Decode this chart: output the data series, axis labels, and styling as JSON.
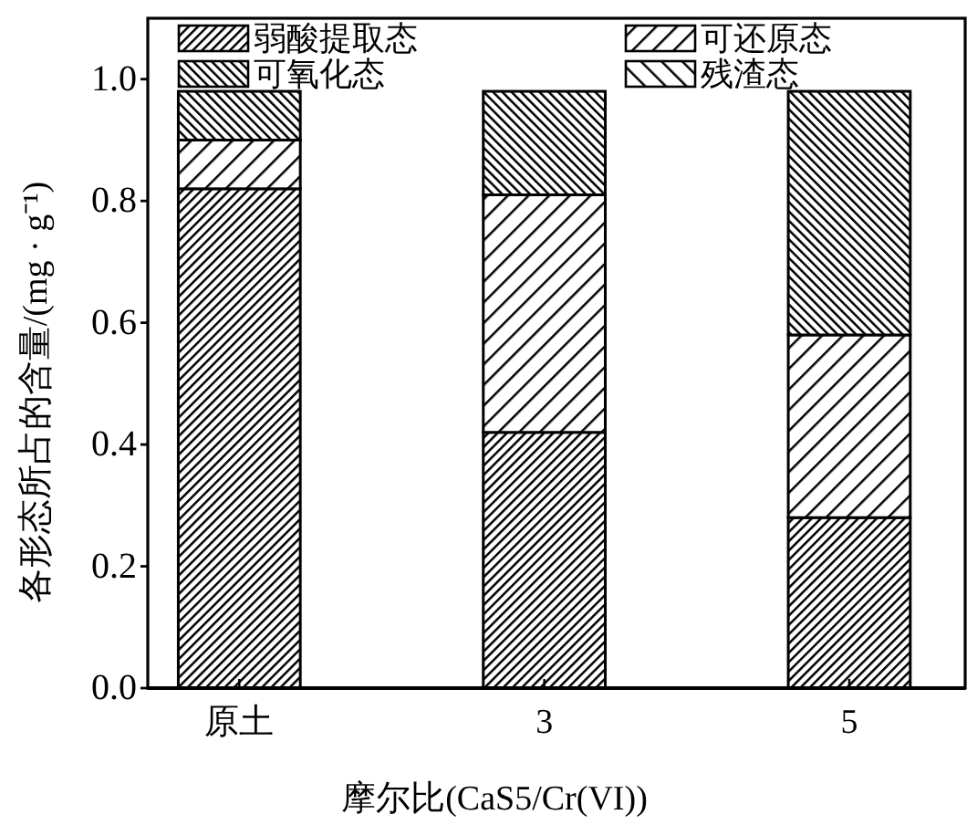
{
  "chart_data": {
    "type": "bar",
    "stacked": true,
    "xlabel": "摩尔比(CaS5/Cr(VI))",
    "ylabel": "各形态所占的含量/(mg · g⁻¹)",
    "categories": [
      "原土",
      "3",
      "5"
    ],
    "series": [
      {
        "name": "弱酸提取态",
        "color": "#000000",
        "values": [
          0.82,
          0.42,
          0.28
        ]
      },
      {
        "name": "可还原态",
        "color": "#000000",
        "values": [
          0.08,
          0.39,
          0.3
        ]
      },
      {
        "name": "可氧化态",
        "color": "#000000",
        "values": [
          0.08,
          0.17,
          0.4
        ]
      },
      {
        "name": "残渣态",
        "color": "#000000",
        "values": [
          null,
          null,
          null
        ]
      }
    ],
    "ylim": [
      0,
      1.1
    ],
    "yticks": [
      {
        "value": 0,
        "label": "0.0"
      },
      0.2,
      0.4,
      0.6,
      0.8,
      {
        "value": 1.0,
        "label": "1.0"
      }
    ],
    "legend": "top"
  }
}
